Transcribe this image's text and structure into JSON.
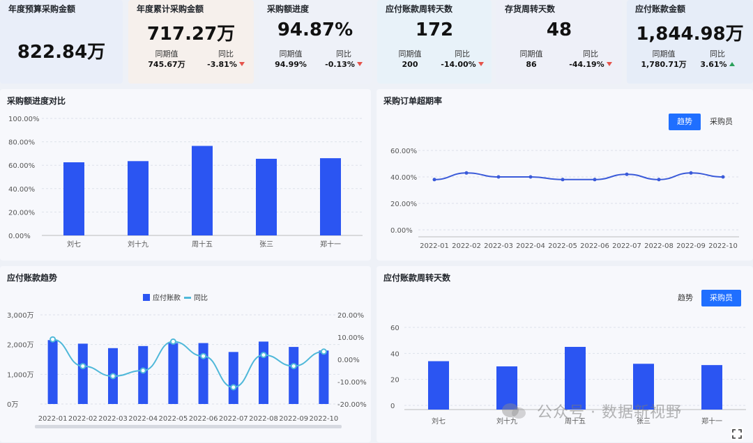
{
  "kpis": [
    {
      "title": "年度预算采购金额",
      "value": "822.84万",
      "bg": "#e9eef9"
    },
    {
      "title": "年度累计采购金额",
      "value": "717.27万",
      "prev_label": "同期值",
      "prev_value": "745.67万",
      "yoy_label": "同比",
      "yoy_value": "-3.81%",
      "dir": "down",
      "bg": "#f6f0ec"
    },
    {
      "title": "采购额进度",
      "value": "94.87%",
      "prev_label": "同期值",
      "prev_value": "94.99%",
      "yoy_label": "同比",
      "yoy_value": "-0.13%",
      "dir": "down",
      "bg": "#eef1f8"
    },
    {
      "title": "应付账款周转天数",
      "value": "172",
      "prev_label": "同期值",
      "prev_value": "200",
      "yoy_label": "同比",
      "yoy_value": "-14.00%",
      "dir": "down",
      "bg": "#e8f2f9"
    },
    {
      "title": "存货周转天数",
      "value": "48",
      "prev_label": "同期值",
      "prev_value": "86",
      "yoy_label": "同比",
      "yoy_value": "-44.19%",
      "dir": "down",
      "bg": "#eef0f8"
    },
    {
      "title": "应付账款金额",
      "value": "1,844.98万",
      "prev_label": "同期值",
      "prev_value": "1,780.71万",
      "yoy_label": "同比",
      "yoy_value": "3.61%",
      "dir": "up",
      "bg": "#e6edf8"
    }
  ],
  "panels": {
    "p1_title": "采购额进度对比",
    "p2_title": "采购订单超期率",
    "p2_tab_trend": "趋势",
    "p2_tab_buyer": "采购员",
    "p3_title": "应付账款趋势",
    "p4_title": "应付账款周转天数",
    "p4_tab_trend": "趋势",
    "p4_tab_buyer": "采购员"
  },
  "colors": {
    "bar": "#2b55f2",
    "line": "#4fb8d9",
    "line2": "#3a5ad9"
  },
  "watermark": "公众号 · 数据新视野",
  "chart_data": [
    {
      "type": "bar",
      "title": "采购额进度对比",
      "categories": [
        "刘七",
        "刘十九",
        "周十五",
        "张三",
        "郑十一"
      ],
      "values": [
        62.5,
        63.5,
        76.5,
        65.5,
        66.0
      ],
      "ylim": [
        0,
        100
      ],
      "yticks": [
        "0.00%",
        "20.00%",
        "40.00%",
        "60.00%",
        "80.00%",
        "100.00%"
      ]
    },
    {
      "type": "line",
      "title": "采购订单超期率",
      "categories": [
        "2022-01",
        "2022-02",
        "2022-03",
        "2022-04",
        "2022-05",
        "2022-06",
        "2022-07",
        "2022-08",
        "2022-09",
        "2022-10"
      ],
      "values": [
        38,
        43,
        40,
        40,
        38,
        38,
        42,
        38,
        43,
        40
      ],
      "ylim": [
        0,
        60
      ],
      "yticks": [
        "0.00%",
        "20.00%",
        "40.00%",
        "60.00%"
      ]
    },
    {
      "type": "bar",
      "title": "应付账款趋势",
      "legend": [
        "应付账款",
        "同比"
      ],
      "categories": [
        "2022-01",
        "2022-02",
        "2022-03",
        "2022-04",
        "2022-05",
        "2022-06",
        "2022-07",
        "2022-08",
        "2022-09",
        "2022-10"
      ],
      "series": [
        {
          "name": "应付账款",
          "values": [
            2150,
            2030,
            1880,
            1950,
            2050,
            2050,
            1750,
            2100,
            1920,
            1800
          ]
        },
        {
          "name": "同比",
          "values": [
            9,
            -3,
            -7.5,
            -5,
            8,
            1.5,
            -12.5,
            2,
            -3,
            3.5
          ]
        }
      ],
      "ylim": [
        0,
        3000
      ],
      "ylim_right": [
        -20,
        20
      ],
      "yticks": [
        "0万",
        "1,000万",
        "2,000万",
        "3,000万"
      ],
      "yticks_right": [
        "-20.00%",
        "-10.00%",
        "0.00%",
        "10.00%",
        "20.00%"
      ]
    },
    {
      "type": "bar",
      "title": "应付账款周转天数",
      "categories": [
        "刘七",
        "刘十九",
        "周十五",
        "张三",
        "郑十一"
      ],
      "values": [
        34,
        30,
        45,
        32,
        31
      ],
      "ylim": [
        0,
        60
      ],
      "yticks": [
        "0",
        "20",
        "40",
        "60"
      ]
    }
  ]
}
